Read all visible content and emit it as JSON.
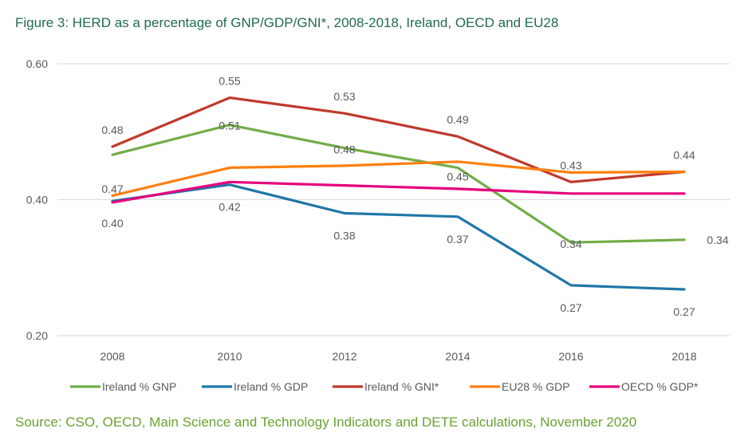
{
  "header": {
    "title": "Figure 3:  HERD as a percentage of GNP/GDP/GNI*, 2008-2018, Ireland, OECD and EU28"
  },
  "footer": {
    "source": "Source: CSO, OECD, Main Science and Technology Indicators and DETE calculations, November 2020"
  },
  "chart_data": {
    "type": "line",
    "title": "",
    "xlabel": "",
    "ylabel": "",
    "categories": [
      "2008",
      "2010",
      "2012",
      "2014",
      "2016",
      "2018"
    ],
    "ylim": [
      0.2,
      0.6
    ],
    "yticks": [
      "0.60",
      "0.40",
      "0.20"
    ],
    "ytick_values": [
      0.6,
      0.4,
      0.2
    ],
    "grid": true,
    "legend_position": "bottom",
    "series": [
      {
        "name": "Ireland % GNP",
        "color": "#70ad47",
        "values": [
          0.466,
          0.51,
          0.476,
          0.447,
          0.337,
          0.341
        ],
        "labels": [
          "0.47",
          "0.51",
          "0.48",
          "0.45",
          "0.34",
          "0.34"
        ]
      },
      {
        "name": "Ireland % GDP",
        "color": "#1f77a8",
        "values": [
          0.398,
          0.422,
          0.38,
          0.375,
          0.274,
          0.268
        ],
        "labels": [
          "0.40",
          "0.42",
          "0.38",
          "0.37",
          "0.27",
          "0.27"
        ]
      },
      {
        "name": "Ireland % GNI*",
        "color": "#c0392b",
        "values": [
          0.478,
          0.55,
          0.527,
          0.493,
          0.426,
          0.441
        ],
        "labels": [
          "0.48",
          "0.55",
          "0.53",
          "0.49",
          "0.43",
          "0.44"
        ]
      },
      {
        "name": "EU28 % GDP",
        "color": "#ff7f0e",
        "values": [
          0.406,
          0.447,
          0.45,
          0.456,
          0.44,
          0.441
        ]
      },
      {
        "name": "OECD % GDP*",
        "color": "#e6007e",
        "values": [
          0.396,
          0.426,
          0.421,
          0.416,
          0.409,
          0.409
        ]
      }
    ]
  }
}
